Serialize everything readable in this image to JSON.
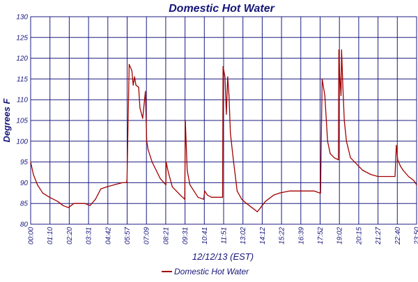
{
  "chart_data": {
    "type": "line",
    "title": "Domestic Hot Water",
    "xlabel": "12/12/13 (EST)",
    "ylabel": "Degrees F",
    "xlim": [
      "00:00",
      "23:50"
    ],
    "ylim": [
      80,
      130
    ],
    "yticks": [
      80,
      85,
      90,
      95,
      100,
      105,
      110,
      115,
      120,
      125,
      130
    ],
    "xticks": [
      "00:00",
      "01:10",
      "02:20",
      "03:31",
      "04:42",
      "05:57",
      "07:09",
      "08:21",
      "09:31",
      "10:41",
      "11:51",
      "13:02",
      "14:12",
      "15:22",
      "16:39",
      "17:52",
      "19:02",
      "20:15",
      "21:27",
      "22:40",
      "23:50"
    ],
    "grid": true,
    "legend_position": "bottom",
    "series_color": "#a00000",
    "grid_color": "#1c1c80",
    "series": [
      {
        "name": "Domestic Hot Water",
        "x": [
          "00:00",
          "00:10",
          "00:25",
          "00:45",
          "01:10",
          "01:40",
          "02:00",
          "02:20",
          "02:40",
          "03:00",
          "03:20",
          "03:40",
          "04:00",
          "04:20",
          "04:42",
          "05:10",
          "05:40",
          "05:55",
          "05:57",
          "06:05",
          "06:15",
          "06:20",
          "06:25",
          "06:30",
          "06:40",
          "06:45",
          "06:55",
          "07:05",
          "07:10",
          "07:15",
          "07:30",
          "08:00",
          "08:21",
          "08:22",
          "08:30",
          "08:45",
          "09:00",
          "09:15",
          "09:31",
          "09:33",
          "09:40",
          "09:50",
          "10:05",
          "10:20",
          "10:41",
          "10:45",
          "10:55",
          "11:10",
          "11:35",
          "11:51",
          "11:53",
          "12:00",
          "12:05",
          "12:10",
          "12:15",
          "12:20",
          "12:30",
          "12:45",
          "13:02",
          "13:20",
          "13:40",
          "14:00",
          "14:12",
          "14:30",
          "15:00",
          "15:22",
          "16:00",
          "16:39",
          "17:00",
          "17:30",
          "17:52",
          "17:54",
          "18:00",
          "18:10",
          "18:20",
          "18:30",
          "18:45",
          "19:00",
          "19:02",
          "19:05",
          "19:10",
          "19:12",
          "19:17",
          "19:22",
          "19:30",
          "19:45",
          "20:00",
          "20:15",
          "20:30",
          "21:00",
          "21:27",
          "22:00",
          "22:30",
          "22:35",
          "22:38",
          "22:40",
          "22:50",
          "23:00",
          "23:20",
          "23:40",
          "23:50"
        ],
        "values": [
          95,
          92,
          89.5,
          87.5,
          86.5,
          85.5,
          84.5,
          84,
          85,
          85,
          85,
          84.5,
          86,
          88.5,
          89,
          89.5,
          90,
          90,
          90.5,
          118.5,
          117,
          113.5,
          115.5,
          113.5,
          113,
          108,
          105.5,
          112,
          100,
          98,
          95,
          91,
          89.5,
          95,
          92.5,
          89,
          88,
          87,
          86,
          105,
          93,
          89.5,
          88,
          86.5,
          86,
          88,
          87,
          86.5,
          86.5,
          86.5,
          118,
          115.5,
          106.5,
          115.5,
          111,
          102,
          96,
          88,
          86,
          85,
          84,
          83,
          84,
          85.5,
          87,
          87.5,
          88,
          88,
          88,
          88,
          87.5,
          87.5,
          115,
          111,
          100,
          97,
          96,
          95.5,
          122,
          116,
          111,
          122,
          113,
          105,
          100,
          96,
          95,
          94,
          93,
          92,
          91.5,
          91.5,
          91.5,
          99,
          97,
          95.5,
          94,
          93,
          91.5,
          90.5,
          89.5
        ]
      }
    ]
  }
}
